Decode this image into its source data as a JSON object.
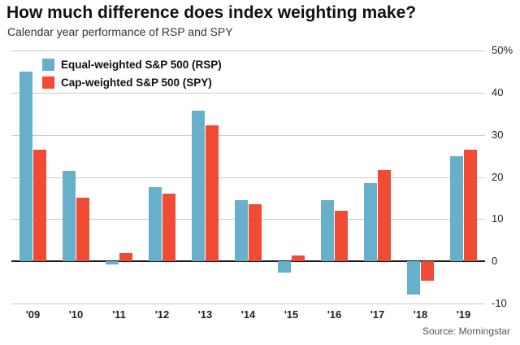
{
  "header": {
    "title": "How much difference does index weighting make?",
    "subtitle": "Calendar year performance of RSP and SPY"
  },
  "footer": {
    "source": "Source: Morningstar"
  },
  "colors": {
    "rsp_blue": "#67afcb",
    "spy_red": "#f04b34",
    "gridline": "#cccccc",
    "zero_line": "#1a1a1a"
  },
  "chart_data": {
    "type": "bar",
    "title": "How much difference does index weighting make?",
    "subtitle": "Calendar year performance of RSP and SPY",
    "categories": [
      "'09",
      "'10",
      "'11",
      "'12",
      "'13",
      "'14",
      "'15",
      "'16",
      "'17",
      "'18",
      "'19"
    ],
    "series": [
      {
        "name": "Equal-weighted S&P 500 (RSP)",
        "color": "#67afcb",
        "values": [
          45.0,
          21.5,
          -0.7,
          17.5,
          35.7,
          14.5,
          -2.6,
          14.5,
          18.5,
          -7.8,
          25.0
        ]
      },
      {
        "name": "Cap-weighted S&P 500 (SPY)",
        "color": "#f04b34",
        "values": [
          26.5,
          15.0,
          1.9,
          16.0,
          32.3,
          13.5,
          1.3,
          12.0,
          21.7,
          -4.6,
          26.5
        ]
      }
    ],
    "ylim": [
      -10,
      50
    ],
    "yticks": [
      50,
      40,
      30,
      20,
      10,
      0,
      -10
    ],
    "ytick_labels": [
      "50%",
      "40",
      "30",
      "20",
      "10",
      "0",
      "-10"
    ],
    "grid": true,
    "legend_position": "top-left",
    "source": "Source: Morningstar"
  }
}
